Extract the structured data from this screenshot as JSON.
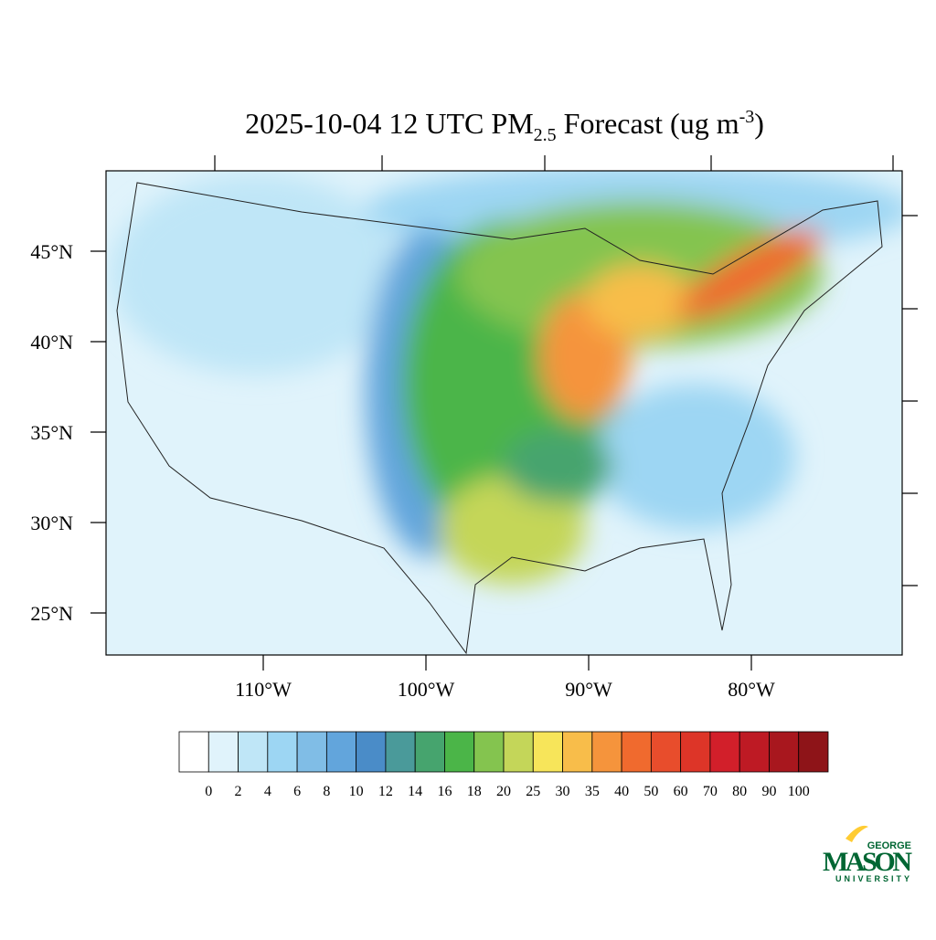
{
  "title": {
    "prefix": "2025-10-04 12 UTC PM",
    "subscript": "2.5",
    "middle": " Forecast (ug m",
    "superscript": "-3",
    "suffix": ")"
  },
  "lat_ticks": [
    {
      "value": 45,
      "label": "45°N"
    },
    {
      "value": 40,
      "label": "40°N"
    },
    {
      "value": 35,
      "label": "35°N"
    },
    {
      "value": 30,
      "label": "30°N"
    },
    {
      "value": 25,
      "label": "25°N"
    }
  ],
  "lon_ticks": [
    {
      "value": -110,
      "label": "110°W"
    },
    {
      "value": -100,
      "label": "100°W"
    },
    {
      "value": -90,
      "label": "90°W"
    },
    {
      "value": -80,
      "label": "80°W"
    }
  ],
  "colorbar": {
    "levels": [
      0,
      2,
      4,
      6,
      8,
      10,
      12,
      14,
      16,
      18,
      20,
      25,
      30,
      35,
      40,
      50,
      60,
      70,
      80,
      90,
      100
    ],
    "colors": [
      "#ffffff",
      "#e0f3fb",
      "#bfe6f7",
      "#9dd6f3",
      "#80bde6",
      "#62a5dc",
      "#4a8cc8",
      "#4a9a9a",
      "#46a46e",
      "#4bb548",
      "#84c44f",
      "#c4d659",
      "#f7e55a",
      "#f8bd4a",
      "#f5943c",
      "#f06a2e",
      "#e84d2c",
      "#dd3528",
      "#d21f2a",
      "#be1a24",
      "#a8171e",
      "#8e1418"
    ]
  },
  "logo": {
    "top": "GEORGE",
    "main": "MASON",
    "bottom": "UNIVERSITY"
  }
}
